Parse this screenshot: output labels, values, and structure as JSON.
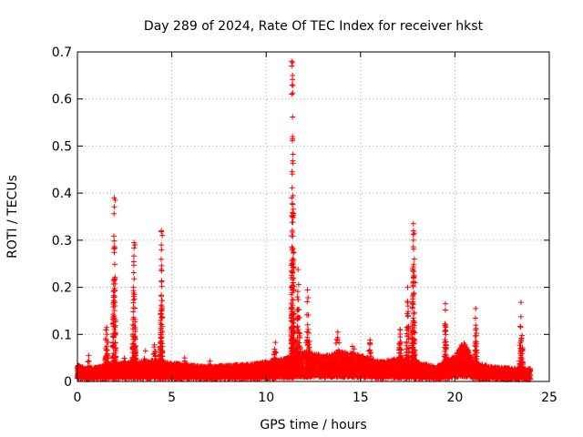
{
  "chart_data": {
    "type": "scatter",
    "title": "Day 289 of 2024, Rate Of TEC Index for receiver hkst",
    "xlabel": "GPS time / hours",
    "ylabel": "ROTI / TECUs",
    "xlim": [
      0,
      25
    ],
    "ylim": [
      0,
      0.7
    ],
    "x_ticks": [
      0,
      5,
      10,
      15,
      20,
      25
    ],
    "y_ticks": [
      0,
      0.1,
      0.2,
      0.3,
      0.4,
      0.5,
      0.6,
      0.7
    ],
    "x_tick_labels": [
      "0",
      "5",
      "10",
      "15",
      "20",
      "25"
    ],
    "y_tick_labels": [
      "0",
      "0.1",
      "0.2",
      "0.3",
      "0.4",
      "0.5",
      "0.6",
      "0.7"
    ],
    "grid": true,
    "marker": "+",
    "color": "#ff0000",
    "baseline": [
      [
        0,
        0.025
      ],
      [
        0.5,
        0.02
      ],
      [
        1,
        0.022
      ],
      [
        2,
        0.028
      ],
      [
        3,
        0.03
      ],
      [
        4,
        0.032
      ],
      [
        5,
        0.028
      ],
      [
        6,
        0.025
      ],
      [
        7,
        0.022
      ],
      [
        8,
        0.025
      ],
      [
        9,
        0.026
      ],
      [
        10,
        0.03
      ],
      [
        11,
        0.035
      ],
      [
        12,
        0.045
      ],
      [
        13,
        0.04
      ],
      [
        14,
        0.045
      ],
      [
        15,
        0.04
      ],
      [
        16,
        0.03
      ],
      [
        17,
        0.035
      ],
      [
        18,
        0.03
      ],
      [
        19,
        0.022
      ],
      [
        20,
        0.04
      ],
      [
        20.5,
        0.06
      ],
      [
        21,
        0.03
      ],
      [
        22,
        0.022
      ],
      [
        23,
        0.02
      ],
      [
        24,
        0.02
      ]
    ],
    "bursts": [
      {
        "x": 0.0,
        "width": 0.08,
        "peak": 0.03
      },
      {
        "x": 0.6,
        "width": 0.15,
        "peak": 0.05
      },
      {
        "x": 1.55,
        "width": 0.12,
        "peak": 0.15
      },
      {
        "x": 1.95,
        "width": 0.1,
        "peak": 0.39
      },
      {
        "x": 2.5,
        "width": 0.12,
        "peak": 0.06
      },
      {
        "x": 3.0,
        "width": 0.1,
        "peak": 0.3
      },
      {
        "x": 3.6,
        "width": 0.15,
        "peak": 0.06
      },
      {
        "x": 4.1,
        "width": 0.18,
        "peak": 0.08
      },
      {
        "x": 4.45,
        "width": 0.08,
        "peak": 0.32
      },
      {
        "x": 5.7,
        "width": 0.15,
        "peak": 0.05
      },
      {
        "x": 7.0,
        "width": 0.2,
        "peak": 0.04
      },
      {
        "x": 10.5,
        "width": 0.2,
        "peak": 0.08
      },
      {
        "x": 11.4,
        "width": 0.1,
        "peak": 0.68
      },
      {
        "x": 11.7,
        "width": 0.15,
        "peak": 0.26
      },
      {
        "x": 12.2,
        "width": 0.15,
        "peak": 0.2
      },
      {
        "x": 13.8,
        "width": 0.4,
        "peak": 0.1
      },
      {
        "x": 14.6,
        "width": 0.3,
        "peak": 0.08
      },
      {
        "x": 15.5,
        "width": 0.15,
        "peak": 0.09
      },
      {
        "x": 17.1,
        "width": 0.15,
        "peak": 0.11
      },
      {
        "x": 17.5,
        "width": 0.1,
        "peak": 0.2
      },
      {
        "x": 17.8,
        "width": 0.1,
        "peak": 0.33
      },
      {
        "x": 19.5,
        "width": 0.08,
        "peak": 0.17
      },
      {
        "x": 20.4,
        "width": 0.3,
        "peak": 0.1
      },
      {
        "x": 21.1,
        "width": 0.1,
        "peak": 0.15
      },
      {
        "x": 23.5,
        "width": 0.12,
        "peak": 0.17
      }
    ],
    "highlight_points": [
      [
        11.35,
        0.68
      ],
      [
        11.35,
        0.67
      ],
      [
        11.4,
        0.65
      ],
      [
        11.38,
        0.63
      ],
      [
        11.35,
        0.61
      ],
      [
        11.4,
        0.52
      ],
      [
        11.4,
        0.515
      ],
      [
        11.35,
        0.39
      ],
      [
        11.4,
        0.35
      ],
      [
        1.95,
        0.39
      ],
      [
        2.0,
        0.385
      ],
      [
        17.8,
        0.335
      ],
      [
        17.8,
        0.32
      ],
      [
        17.85,
        0.315
      ],
      [
        17.8,
        0.3
      ],
      [
        17.85,
        0.26
      ],
      [
        17.9,
        0.21
      ],
      [
        17.5,
        0.2
      ],
      [
        4.45,
        0.32
      ],
      [
        4.5,
        0.31
      ],
      [
        3.0,
        0.295
      ],
      [
        3.05,
        0.29
      ],
      [
        19.5,
        0.165
      ],
      [
        23.5,
        0.168
      ],
      [
        21.1,
        0.155
      ]
    ]
  }
}
